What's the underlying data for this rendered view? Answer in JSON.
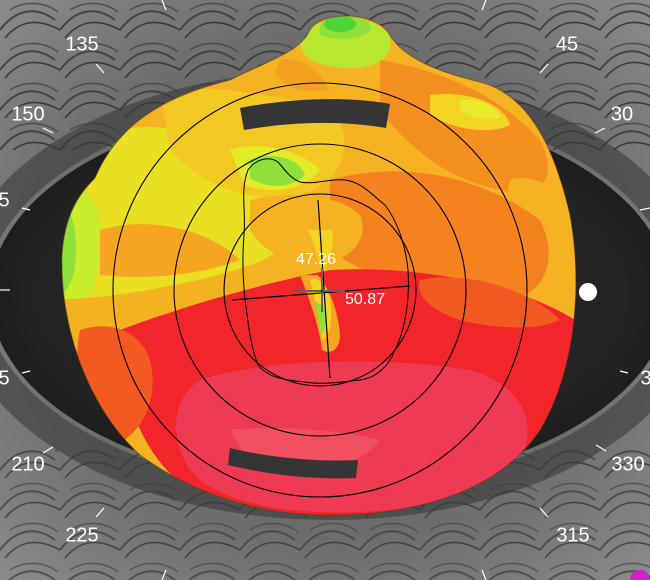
{
  "map": {
    "kind": "corneal-topography-axial-map",
    "axis_angles": [
      {
        "text": "135",
        "angle": 135
      },
      {
        "text": "45",
        "angle": 45
      },
      {
        "text": "150",
        "angle": 150
      },
      {
        "text": "30",
        "angle": 30
      },
      {
        "text": "5",
        "angle": 165
      },
      {
        "text": "5",
        "angle": 195
      },
      {
        "text": "3",
        "angle": 345
      },
      {
        "text": "210",
        "angle": 210
      },
      {
        "text": "330",
        "angle": 330
      },
      {
        "text": "225",
        "angle": 225
      },
      {
        "text": "315",
        "angle": 315
      }
    ],
    "k_readings": {
      "flat": "47.26",
      "steep": "50.87"
    },
    "colors": {
      "green": "#8fe03a",
      "yellow_green": "#d8ef2a",
      "yellow": "#f2e21e",
      "orange_yellow": "#f5b323",
      "orange": "#f3821f",
      "red_orange": "#f25a22",
      "red": "#f2262a",
      "pink_red": "#ee3a52"
    }
  }
}
